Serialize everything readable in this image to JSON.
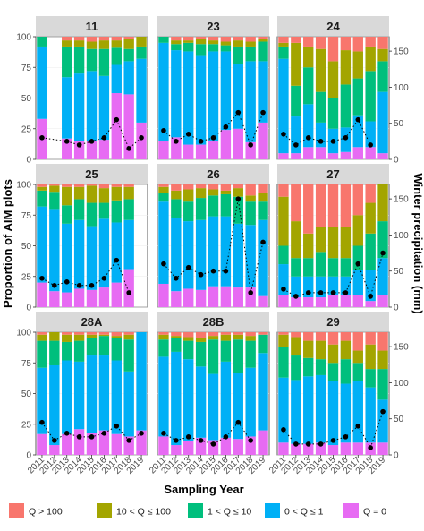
{
  "chart_data": {
    "type": "bar",
    "stacked": true,
    "secondary_type": "line",
    "facets": [
      "11",
      "23",
      "24",
      "25",
      "26",
      "27",
      "28A",
      "28B",
      "29"
    ],
    "years": [
      "2011",
      "2012",
      "2013",
      "2014",
      "2015",
      "2016",
      "2017",
      "2018",
      "2019"
    ],
    "x_label": "Sampling Year",
    "y_label_left": "Proportion of AIM plots",
    "y_label_right": "Winter precipitation (mm)",
    "y_left_ticks": [
      "0",
      "25",
      "50",
      "75",
      "100"
    ],
    "y_right_ticks": [
      "0",
      "50",
      "100",
      "150"
    ],
    "y_left_range": [
      0,
      100
    ],
    "y_right_range": [
      0,
      170
    ],
    "categories": [
      "Q > 100",
      "10 < Q ≤ 100",
      "1 < Q ≤ 10",
      "0 < Q ≤ 1",
      "Q = 0"
    ],
    "colors": [
      "#F8766D",
      "#A3A500",
      "#00BF7D",
      "#00B0F6",
      "#E76BF3"
    ],
    "legend_position": "bottom",
    "grid": true,
    "panels": [
      {
        "name": "11",
        "bars": [
          [
            0,
            0,
            8,
            59,
            33
          ],
          null,
          [
            3,
            5,
            25,
            50,
            17
          ],
          [
            3,
            5,
            22,
            55,
            15
          ],
          [
            4,
            6,
            18,
            57,
            15
          ],
          [
            3,
            7,
            22,
            52,
            16
          ],
          [
            3,
            6,
            14,
            23,
            54
          ],
          [
            2,
            8,
            10,
            27,
            53
          ],
          [
            0,
            8,
            10,
            52,
            30
          ]
        ],
        "precip": [
          30,
          null,
          25,
          20,
          25,
          30,
          55,
          15,
          30
        ]
      },
      {
        "name": "23",
        "bars": [
          [
            0,
            0,
            5,
            80,
            15
          ],
          [
            3,
            3,
            5,
            71,
            18
          ],
          [
            3,
            2,
            7,
            76,
            12
          ],
          [
            2,
            4,
            9,
            73,
            12
          ],
          [
            3,
            3,
            6,
            73,
            15
          ],
          [
            4,
            3,
            5,
            64,
            24
          ],
          [
            3,
            5,
            14,
            53,
            25
          ],
          [
            4,
            4,
            12,
            66,
            14
          ],
          [
            2,
            2,
            16,
            50,
            30
          ]
        ],
        "precip": [
          40,
          25,
          35,
          25,
          30,
          45,
          65,
          20,
          65
        ]
      },
      {
        "name": "24",
        "bars": [
          [
            5,
            3,
            10,
            77,
            5
          ],
          [
            5,
            35,
            25,
            30,
            5
          ],
          [
            8,
            17,
            30,
            35,
            10
          ],
          [
            10,
            35,
            25,
            20,
            10
          ],
          [
            20,
            30,
            25,
            20,
            5
          ],
          [
            11,
            28,
            35,
            20,
            6
          ],
          [
            12,
            22,
            30,
            26,
            10
          ],
          [
            8,
            20,
            41,
            21,
            10
          ],
          [
            10,
            10,
            25,
            50,
            5
          ]
        ],
        "precip": [
          35,
          20,
          30,
          25,
          25,
          30,
          55,
          20,
          null
        ]
      },
      {
        "name": "25",
        "bars": [
          [
            2,
            3,
            13,
            62,
            20
          ],
          [
            1,
            5,
            14,
            67,
            13
          ],
          [
            2,
            15,
            15,
            56,
            12
          ],
          [
            2,
            10,
            17,
            56,
            15
          ],
          [
            1,
            14,
            19,
            52,
            14
          ],
          [
            3,
            12,
            13,
            56,
            16
          ],
          [
            2,
            11,
            18,
            49,
            20
          ],
          [
            2,
            10,
            17,
            40,
            31
          ],
          [
            0,
            0,
            0,
            0,
            0
          ]
        ],
        "precip": [
          40,
          30,
          35,
          30,
          30,
          40,
          65,
          20,
          null
        ]
      },
      {
        "name": "26",
        "bars": [
          [
            2,
            5,
            7,
            67,
            19
          ],
          [
            5,
            7,
            15,
            60,
            13
          ],
          [
            4,
            10,
            16,
            55,
            15
          ],
          [
            3,
            8,
            18,
            57,
            14
          ],
          [
            4,
            5,
            17,
            57,
            17
          ],
          [
            5,
            3,
            18,
            57,
            17
          ],
          [
            3,
            7,
            22,
            52,
            16
          ],
          [
            9,
            5,
            19,
            51,
            16
          ],
          [
            7,
            7,
            15,
            62,
            9
          ]
        ],
        "precip": [
          60,
          40,
          55,
          45,
          50,
          50,
          150,
          20,
          90
        ]
      },
      {
        "name": "27",
        "bars": [
          [
            10,
            40,
            15,
            25,
            10
          ],
          [
            30,
            30,
            15,
            17,
            8
          ],
          [
            40,
            20,
            15,
            17,
            8
          ],
          [
            35,
            20,
            20,
            17,
            8
          ],
          [
            35,
            25,
            15,
            15,
            10
          ],
          [
            35,
            25,
            15,
            15,
            10
          ],
          [
            25,
            25,
            20,
            20,
            10
          ],
          [
            15,
            25,
            30,
            25,
            5
          ],
          [
            0,
            30,
            30,
            30,
            10
          ]
        ],
        "precip": [
          25,
          15,
          20,
          20,
          20,
          20,
          60,
          15,
          75
        ]
      },
      {
        "name": "28A",
        "bars": [
          [
            2,
            5,
            22,
            54,
            17
          ],
          [
            0,
            7,
            20,
            65,
            8
          ],
          [
            2,
            6,
            15,
            60,
            17
          ],
          [
            2,
            5,
            17,
            55,
            21
          ],
          [
            2,
            3,
            14,
            63,
            18
          ],
          [
            2,
            1,
            16,
            61,
            20
          ],
          [
            3,
            2,
            18,
            60,
            17
          ],
          [
            2,
            4,
            26,
            53,
            15
          ],
          [
            0,
            0,
            0,
            80,
            20
          ]
        ],
        "precip": [
          45,
          20,
          30,
          25,
          25,
          30,
          40,
          20,
          30
        ]
      },
      {
        "name": "28B",
        "bars": [
          [
            2,
            4,
            14,
            65,
            15
          ],
          [
            3,
            2,
            11,
            76,
            8
          ],
          [
            4,
            3,
            15,
            67,
            11
          ],
          [
            5,
            3,
            20,
            58,
            14
          ],
          [
            3,
            3,
            28,
            54,
            12
          ],
          [
            2,
            5,
            17,
            62,
            14
          ],
          [
            2,
            4,
            27,
            54,
            13
          ],
          [
            3,
            4,
            22,
            56,
            15
          ],
          [
            2,
            0,
            15,
            63,
            20
          ]
        ],
        "precip": [
          30,
          20,
          25,
          20,
          15,
          25,
          45,
          20,
          null
        ]
      },
      {
        "name": "29",
        "bars": [
          [
            2,
            10,
            25,
            53,
            10
          ],
          [
            4,
            15,
            20,
            52,
            9
          ],
          [
            7,
            14,
            15,
            55,
            9
          ],
          [
            7,
            15,
            13,
            55,
            10
          ],
          [
            10,
            15,
            15,
            52,
            8
          ],
          [
            7,
            15,
            20,
            48,
            10
          ],
          [
            15,
            10,
            15,
            50,
            10
          ],
          [
            10,
            20,
            15,
            45,
            10
          ],
          [
            15,
            15,
            25,
            35,
            10
          ]
        ],
        "precip": [
          35,
          15,
          15,
          15,
          20,
          25,
          40,
          10,
          60
        ]
      }
    ]
  }
}
